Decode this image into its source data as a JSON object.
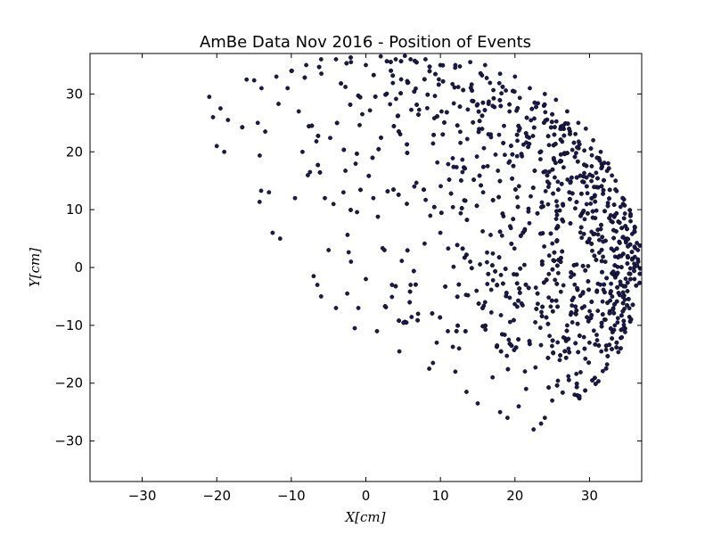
{
  "chart_data": {
    "type": "scatter",
    "title": "AmBe Data Nov 2016 - Position of Events",
    "xlabel": "X[cm]",
    "ylabel": "Y[cm]",
    "xlim": [
      -37,
      37
    ],
    "ylim": [
      -37,
      37
    ],
    "xticks": [
      -30,
      -20,
      -10,
      0,
      10,
      20,
      30
    ],
    "yticks": [
      -30,
      -20,
      -10,
      0,
      10,
      20,
      30
    ],
    "xtick_labels": [
      "−30",
      "−20",
      "−10",
      "0",
      "10",
      "20",
      "30"
    ],
    "ytick_labels": [
      "−30",
      "−20",
      "−10",
      "0",
      "10",
      "20",
      "30"
    ],
    "grid": false,
    "marker_color": "#1a1a4e",
    "marker_edge": "#000000",
    "detector_radius": 37,
    "point_count": 1400,
    "series": [
      {
        "points": [
          [
            -21,
            29.5
          ],
          [
            -20.5,
            26
          ],
          [
            -19.5,
            27.5
          ],
          [
            -20,
            21
          ],
          [
            -19,
            20
          ],
          [
            -18.5,
            25.5
          ],
          [
            -16,
            32.5
          ],
          [
            -14.5,
            25
          ],
          [
            -13.5,
            23.5
          ],
          [
            -13,
            13
          ],
          [
            -12.5,
            6
          ],
          [
            -11.5,
            5
          ],
          [
            -10.5,
            31
          ],
          [
            -9.5,
            12
          ],
          [
            -9,
            27
          ],
          [
            -8.5,
            20
          ],
          [
            -7.5,
            16.5
          ],
          [
            -7,
            -1.5
          ],
          [
            -6.5,
            -3
          ],
          [
            -6,
            -5
          ],
          [
            -5.5,
            12
          ],
          [
            -5,
            3
          ],
          [
            -4,
            -7
          ],
          [
            -3,
            13
          ],
          [
            -2.5,
            -4.5
          ],
          [
            -2,
            1
          ],
          [
            -1.5,
            -10.5
          ],
          [
            -1,
            -7
          ],
          [
            0,
            -2
          ],
          [
            1,
            12
          ],
          [
            1.5,
            -11
          ],
          [
            2.5,
            3
          ],
          [
            3.5,
            -3
          ],
          [
            4.5,
            -14.5
          ],
          [
            5.5,
            11
          ],
          [
            6,
            -3
          ],
          [
            6.5,
            14
          ],
          [
            7,
            -8
          ],
          [
            8.5,
            -17.5
          ],
          [
            9,
            -16.5
          ],
          [
            9.5,
            -13
          ],
          [
            10,
            6
          ],
          [
            11,
            -11
          ],
          [
            12,
            -18
          ],
          [
            12.5,
            -14
          ],
          [
            13.5,
            -21.5
          ],
          [
            14,
            1
          ],
          [
            15,
            -23.5
          ],
          [
            16,
            -6
          ],
          [
            17,
            -19
          ],
          [
            18,
            -25
          ],
          [
            19,
            -26
          ],
          [
            20.5,
            -24
          ],
          [
            21.5,
            -21
          ],
          [
            22.5,
            -28
          ],
          [
            23.5,
            -27
          ],
          [
            24,
            -26
          ],
          [
            25,
            -23
          ],
          [
            26,
            -16
          ],
          [
            27,
            -10
          ],
          [
            28,
            -22
          ],
          [
            29,
            -7
          ],
          [
            30,
            -13
          ],
          [
            31,
            -4
          ],
          [
            32,
            -9
          ],
          [
            33,
            -1
          ],
          [
            34,
            2
          ],
          [
            35,
            5
          ],
          [
            36,
            0
          ],
          [
            36.5,
            3
          ],
          [
            35.5,
            8
          ],
          [
            34.5,
            11
          ],
          [
            33.5,
            15
          ],
          [
            32.5,
            18
          ],
          [
            31.5,
            20
          ],
          [
            30.5,
            22
          ],
          [
            29.5,
            24
          ],
          [
            28.5,
            25
          ],
          [
            27,
            27
          ],
          [
            25.5,
            29
          ],
          [
            24,
            30
          ],
          [
            22,
            31
          ],
          [
            20,
            33
          ],
          [
            18,
            33.5
          ],
          [
            16,
            35
          ],
          [
            14,
            35.5
          ],
          [
            12,
            35
          ],
          [
            10,
            35
          ],
          [
            8,
            36
          ],
          [
            6,
            36
          ],
          [
            4,
            36
          ],
          [
            2,
            36.5
          ],
          [
            0,
            35
          ],
          [
            -2,
            35.5
          ],
          [
            -4,
            36
          ],
          [
            -6,
            36
          ],
          [
            -8,
            35
          ],
          [
            -10,
            34
          ],
          [
            -12,
            33
          ],
          [
            -14,
            31
          ]
        ]
      }
    ]
  }
}
